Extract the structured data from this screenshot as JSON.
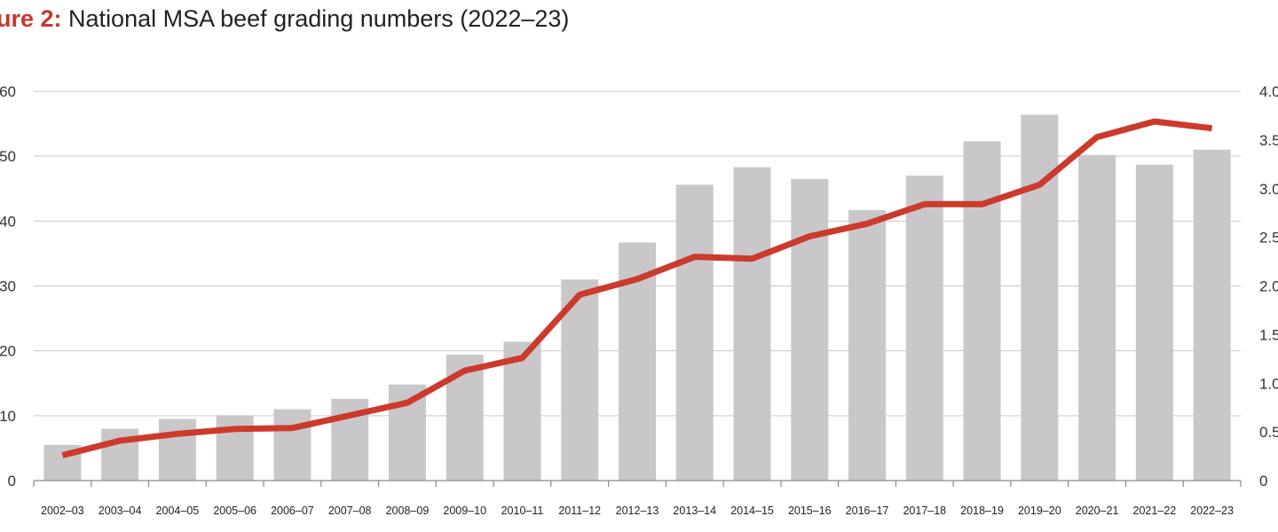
{
  "figure_label": "ure 2:",
  "title": "National MSA beef grading numbers (2022–23)",
  "chart_data": {
    "type": "bar",
    "title": "National MSA beef grading numbers (2022–23)",
    "xlabel": "",
    "ylabel": "",
    "categories": [
      "2002–03",
      "2003–04",
      "2004–05",
      "2005–06",
      "2006–07",
      "2007–08",
      "2008–09",
      "2009–10",
      "2010–11",
      "2011–12",
      "2012–13",
      "2013–14",
      "2014–15",
      "2015–16",
      "2016–17",
      "2017–18",
      "2018–19",
      "2019–20",
      "2020–21",
      "2021–22",
      "2022–23"
    ],
    "series": [
      {
        "type": "bar",
        "axis": "left",
        "color": "#cac7cb",
        "values": [
          5.5,
          8,
          9.5,
          10,
          11,
          12.6,
          14.8,
          19.4,
          21.4,
          31,
          36.7,
          45.6,
          48.3,
          46.5,
          41.7,
          47,
          52.3,
          56.4,
          50.2,
          48.7,
          51
        ]
      },
      {
        "type": "line",
        "axis": "right",
        "color": "#cc3a2c",
        "values": [
          0.26,
          0.41,
          0.48,
          0.53,
          0.54,
          0.67,
          0.8,
          1.13,
          1.26,
          1.91,
          2.07,
          2.3,
          2.28,
          2.51,
          2.64,
          2.84,
          2.84,
          3.04,
          3.53,
          3.69,
          3.62
        ]
      }
    ],
    "y_left": {
      "min": 0,
      "max": 60,
      "ticks": [
        0,
        10,
        20,
        30,
        40,
        50,
        60
      ],
      "tick_labels": [
        "0",
        "10",
        "20",
        "30",
        "40",
        "50",
        "60"
      ]
    },
    "y_right": {
      "min": 0,
      "max": 4,
      "ticks": [
        0,
        0.5,
        1,
        1.5,
        2,
        2.5,
        3,
        3.5,
        4
      ],
      "tick_labels": [
        "0",
        "0.5",
        "1.0",
        "1.5",
        "2.0",
        "2.5",
        "3.0",
        "3.5",
        "4.0"
      ]
    },
    "grid": true,
    "legend": "none"
  }
}
